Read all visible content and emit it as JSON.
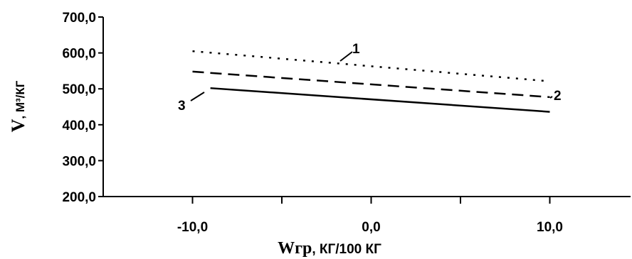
{
  "chart_data": {
    "type": "line",
    "x": [
      -10.0,
      10.0
    ],
    "xlim": [
      -15.0,
      15.0
    ],
    "ylim": [
      200.0,
      700.0
    ],
    "xticks": [
      -10.0,
      0.0,
      10.0
    ],
    "yticks": [
      200.0,
      300.0,
      400.0,
      500.0,
      600.0,
      700.0
    ],
    "xtick_labels": [
      "-10,0",
      "0,0",
      "10,0"
    ],
    "ytick_labels": [
      "200,0",
      "300,0",
      "400,0",
      "500,0",
      "600,0",
      "700,0"
    ],
    "xlabel": {
      "symbol": "Wгр",
      "unit": ", КГ/100 КГ"
    },
    "ylabel": {
      "symbol": "V",
      "unit": ", М³/КГ"
    },
    "grid": false,
    "series": [
      {
        "name": "1",
        "style": "dotted",
        "x": [
          -10.0,
          10.0
        ],
        "values": [
          605.0,
          521.0
        ]
      },
      {
        "name": "2",
        "style": "dashed",
        "x": [
          -10.0,
          10.0
        ],
        "values": [
          548.0,
          477.0
        ]
      },
      {
        "name": "3",
        "style": "solid",
        "x": [
          -9.0,
          10.0
        ],
        "values": [
          502.0,
          436.0
        ]
      }
    ]
  }
}
